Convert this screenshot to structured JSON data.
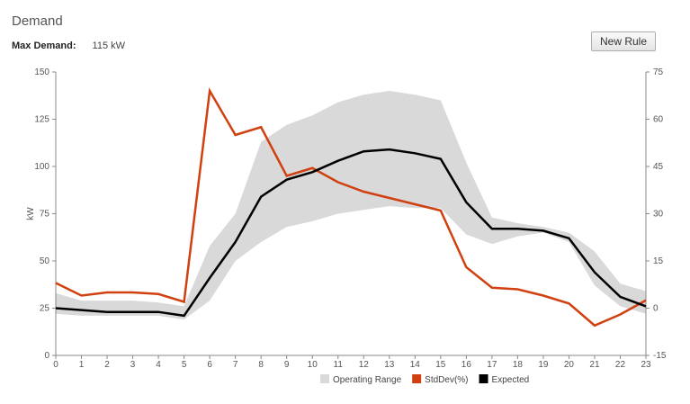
{
  "header": {
    "title": "Demand",
    "max_demand_label": "Max Demand:",
    "max_demand_value": "115 kW",
    "new_rule_label": "New Rule"
  },
  "chart_data": {
    "type": "line",
    "title": "Demand",
    "xlabel": "",
    "ylabel": "kW",
    "y2label": "",
    "x": [
      0,
      1,
      2,
      3,
      4,
      5,
      6,
      7,
      8,
      9,
      10,
      11,
      12,
      13,
      14,
      15,
      16,
      17,
      18,
      19,
      20,
      21,
      22,
      23
    ],
    "xlim": [
      0,
      23
    ],
    "ylim": [
      0,
      150
    ],
    "yticks": [
      0,
      25,
      50,
      75,
      100,
      125,
      150
    ],
    "y2lim": [
      -15,
      75
    ],
    "y2ticks": [
      -15,
      0,
      15,
      30,
      45,
      60,
      75
    ],
    "grid": false,
    "legend": "bottom",
    "series": [
      {
        "name": "Operating Range",
        "kind": "band",
        "axis": "left",
        "color": "#d9d9d9",
        "lower": [
          22,
          21,
          21,
          21,
          21,
          19,
          29,
          50,
          60,
          68,
          71,
          75,
          77,
          79,
          78,
          78,
          64,
          59,
          63,
          65,
          60,
          37,
          26,
          22
        ],
        "upper": [
          33,
          29,
          29,
          29,
          28,
          26,
          58,
          75,
          113,
          122,
          127,
          134,
          138,
          140,
          138,
          135,
          102,
          73,
          70,
          68,
          65,
          55,
          38,
          34
        ]
      },
      {
        "name": "StdDev(%)",
        "kind": "line",
        "axis": "right",
        "color": "#d04010",
        "values": [
          8,
          4,
          5,
          5,
          4.5,
          2,
          69,
          55,
          57.5,
          42,
          44.5,
          40,
          37,
          35,
          33,
          31,
          13,
          6.5,
          6,
          4,
          1.5,
          -5.5,
          -2,
          2.5
        ]
      },
      {
        "name": "Expected",
        "kind": "line",
        "axis": "left",
        "color": "#000000",
        "values": [
          25,
          24,
          23,
          23,
          23,
          21,
          41,
          60,
          84,
          93,
          97,
          103,
          108,
          109,
          107,
          104,
          81,
          67,
          67,
          66,
          62,
          44,
          31,
          26
        ]
      }
    ]
  }
}
